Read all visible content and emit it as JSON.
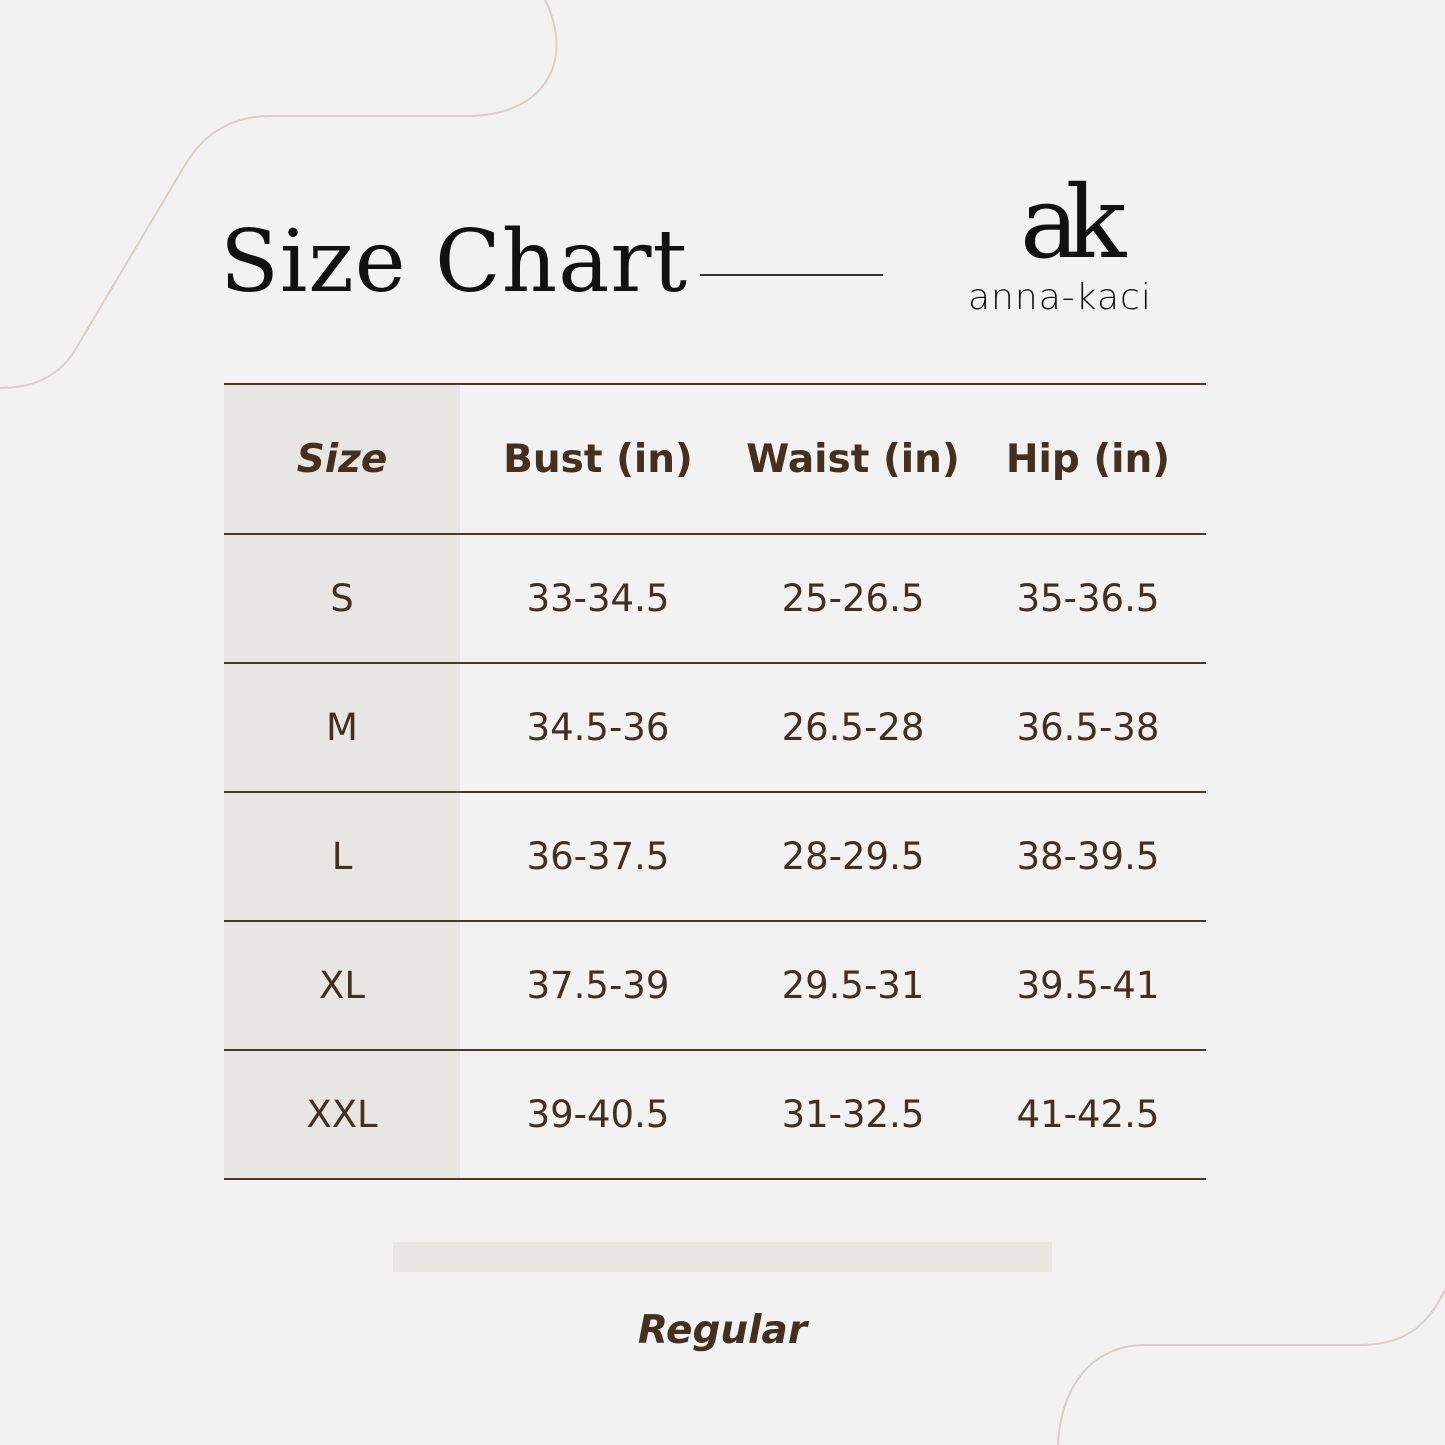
{
  "title": "Size Chart",
  "brand": {
    "mark": "ak",
    "name": "anna-kaci"
  },
  "colors": {
    "background": "#f2f2f2",
    "size_column": "#e8e6e2",
    "text": "#45301f",
    "rule": "#4a382b",
    "decor_curve": "#d9cfc5"
  },
  "table": {
    "headers": [
      "Size",
      "Bust (in)",
      "Waist (in)",
      "Hip (in)"
    ],
    "rows": [
      [
        "S",
        "33-34.5",
        "25-26.5",
        "35-36.5"
      ],
      [
        "M",
        "34.5-36",
        "26.5-28",
        "36.5-38"
      ],
      [
        "L",
        "36-37.5",
        "28-29.5",
        "38-39.5"
      ],
      [
        "XL",
        "37.5-39",
        "29.5-31",
        "39.5-41"
      ],
      [
        "XXL",
        "39-40.5",
        "31-32.5",
        "41-42.5"
      ]
    ]
  },
  "fit_label": "Regular"
}
